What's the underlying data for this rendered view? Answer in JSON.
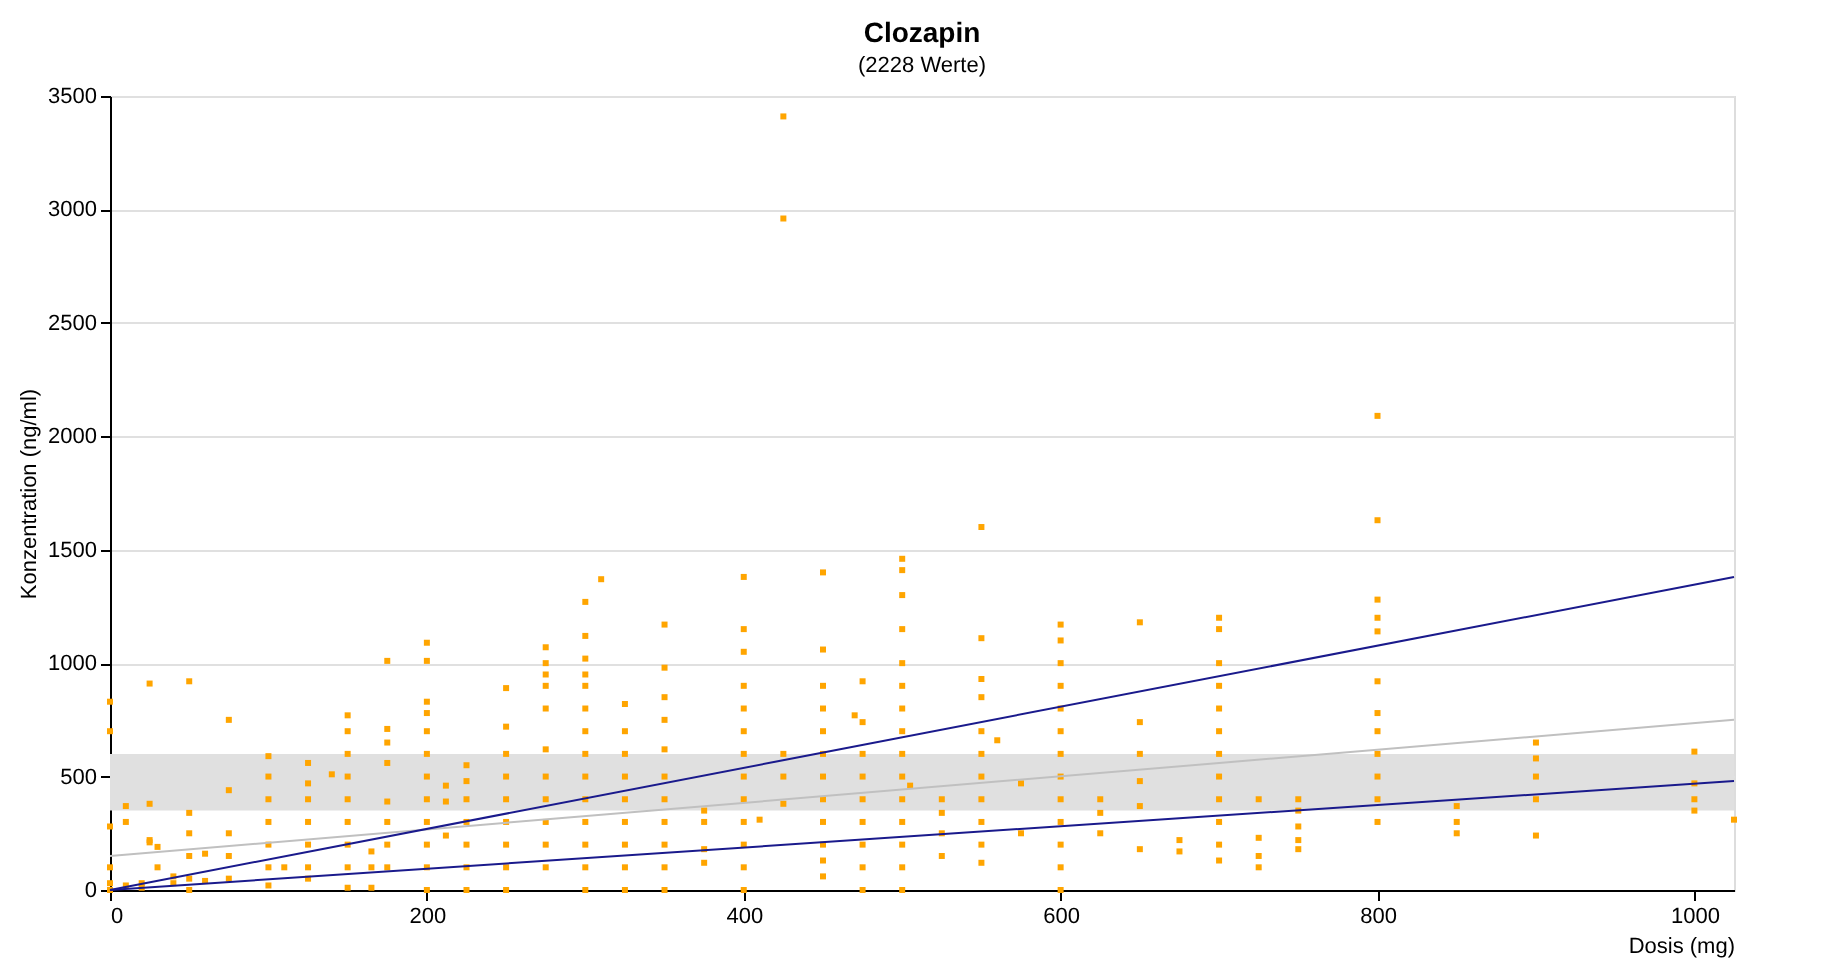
{
  "chart_data": {
    "type": "scatter",
    "title": "Clozapin",
    "subtitle": "(2228 Werte)",
    "xlabel": "Dosis (mg)",
    "ylabel": "Konzentration (ng/ml)",
    "xlim": [
      0,
      1025
    ],
    "xticks": [
      0,
      200,
      400,
      600,
      800,
      1000
    ],
    "ylim": [
      0,
      3500
    ],
    "yticks": [
      0,
      500,
      1000,
      1500,
      2000,
      2500,
      3000,
      3500
    ],
    "grid": "y",
    "marker": "square",
    "bands": [
      {
        "axis": "y",
        "from": 350,
        "to": 600,
        "color": "#e0e0e0"
      }
    ],
    "series": [
      {
        "color": "#ffa500",
        "x": [
          0,
          0,
          0,
          0,
          0,
          0,
          10,
          10,
          10,
          20,
          20,
          25,
          25,
          25,
          25,
          30,
          30,
          40,
          40,
          50,
          50,
          50,
          50,
          50,
          50,
          60,
          60,
          75,
          75,
          75,
          75,
          75,
          100,
          100,
          100,
          100,
          100,
          100,
          100,
          110,
          125,
          125,
          125,
          125,
          125,
          125,
          125,
          140,
          150,
          150,
          150,
          150,
          150,
          150,
          150,
          150,
          150,
          165,
          165,
          165,
          175,
          175,
          175,
          175,
          175,
          175,
          175,
          175,
          200,
          200,
          200,
          200,
          200,
          200,
          200,
          200,
          200,
          200,
          200,
          200,
          212,
          212,
          212,
          225,
          225,
          225,
          225,
          225,
          225,
          225,
          250,
          250,
          250,
          250,
          250,
          250,
          250,
          250,
          250,
          275,
          275,
          275,
          275,
          275,
          275,
          275,
          275,
          275,
          275,
          275,
          300,
          300,
          300,
          300,
          300,
          300,
          300,
          300,
          300,
          300,
          300,
          300,
          300,
          300,
          310,
          325,
          325,
          325,
          325,
          325,
          325,
          325,
          325,
          325,
          350,
          350,
          350,
          350,
          350,
          350,
          350,
          350,
          350,
          350,
          350,
          375,
          375,
          375,
          375,
          400,
          400,
          400,
          400,
          400,
          400,
          400,
          400,
          400,
          400,
          400,
          400,
          400,
          410,
          425,
          425,
          425,
          425,
          425,
          450,
          450,
          450,
          450,
          450,
          450,
          450,
          450,
          450,
          450,
          450,
          450,
          470,
          475,
          475,
          475,
          475,
          475,
          475,
          475,
          475,
          475,
          500,
          500,
          500,
          500,
          500,
          500,
          500,
          500,
          500,
          500,
          500,
          500,
          500,
          500,
          500,
          505,
          525,
          525,
          525,
          525,
          550,
          550,
          550,
          550,
          550,
          550,
          550,
          550,
          550,
          550,
          550,
          560,
          575,
          575,
          600,
          600,
          600,
          600,
          600,
          600,
          600,
          600,
          600,
          600,
          600,
          600,
          600,
          625,
          625,
          625,
          650,
          650,
          650,
          650,
          650,
          650,
          675,
          675,
          700,
          700,
          700,
          700,
          700,
          700,
          700,
          700,
          700,
          700,
          700,
          700,
          725,
          725,
          725,
          725,
          750,
          750,
          750,
          750,
          750,
          800,
          800,
          800,
          800,
          800,
          800,
          800,
          800,
          800,
          800,
          800,
          800,
          850,
          850,
          850,
          900,
          900,
          900,
          900,
          900,
          1000,
          1000,
          1000,
          1000,
          1025
        ],
        "values": [
          830,
          700,
          280,
          100,
          30,
          0,
          370,
          300,
          20,
          30,
          10,
          910,
          380,
          210,
          220,
          190,
          100,
          60,
          30,
          920,
          340,
          250,
          150,
          50,
          0,
          160,
          40,
          750,
          440,
          250,
          150,
          50,
          590,
          500,
          400,
          300,
          200,
          100,
          20,
          100,
          560,
          470,
          400,
          300,
          200,
          100,
          50,
          510,
          770,
          700,
          600,
          500,
          400,
          300,
          200,
          100,
          10,
          170,
          100,
          10,
          1010,
          710,
          650,
          560,
          390,
          300,
          200,
          100,
          1090,
          1010,
          830,
          780,
          700,
          600,
          500,
          400,
          300,
          200,
          100,
          0,
          460,
          390,
          240,
          550,
          480,
          400,
          300,
          200,
          100,
          0,
          890,
          720,
          600,
          500,
          400,
          300,
          200,
          100,
          0,
          1070,
          1000,
          950,
          900,
          800,
          620,
          500,
          400,
          300,
          200,
          100,
          1270,
          1120,
          1020,
          950,
          900,
          800,
          700,
          600,
          500,
          400,
          300,
          200,
          100,
          0,
          1370,
          820,
          700,
          600,
          500,
          400,
          300,
          200,
          100,
          0,
          1170,
          980,
          850,
          750,
          620,
          500,
          400,
          300,
          200,
          100,
          0,
          350,
          300,
          180,
          120,
          1380,
          1150,
          1050,
          900,
          800,
          700,
          600,
          500,
          400,
          300,
          200,
          100,
          0,
          310,
          3410,
          2960,
          600,
          500,
          380,
          1400,
          1060,
          900,
          800,
          700,
          600,
          500,
          400,
          300,
          200,
          130,
          60,
          770,
          920,
          740,
          600,
          500,
          400,
          300,
          200,
          100,
          0,
          1460,
          1410,
          1300,
          1150,
          1000,
          900,
          800,
          700,
          600,
          500,
          400,
          300,
          200,
          100,
          0,
          460,
          400,
          340,
          250,
          150,
          1600,
          1110,
          930,
          850,
          700,
          600,
          500,
          400,
          300,
          200,
          120,
          660,
          470,
          250,
          1170,
          1100,
          1000,
          900,
          800,
          700,
          600,
          500,
          400,
          300,
          200,
          100,
          0,
          400,
          340,
          250,
          1180,
          740,
          600,
          480,
          370,
          180,
          220,
          170,
          1200,
          1150,
          1000,
          900,
          800,
          700,
          600,
          500,
          400,
          300,
          200,
          130,
          400,
          230,
          150,
          100,
          400,
          350,
          280,
          220,
          180,
          2090,
          1630,
          1280,
          1200,
          1140,
          920,
          780,
          700,
          600,
          500,
          400,
          300,
          370,
          300,
          250,
          650,
          580,
          500,
          400,
          240,
          610,
          470,
          400,
          350,
          310
        ]
      },
      {
        "type": "line",
        "marker": "none",
        "color": "#c0c0c0",
        "x": [
          0,
          1025
        ],
        "values": [
          150,
          750
        ]
      },
      {
        "type": "line",
        "marker": "none",
        "color": "#1a1a8c",
        "x": [
          0,
          1025
        ],
        "values": [
          0,
          1380
        ]
      },
      {
        "type": "line",
        "marker": "none",
        "color": "#1a1a8c",
        "x": [
          0,
          1025
        ],
        "values": [
          0,
          480
        ]
      }
    ]
  }
}
